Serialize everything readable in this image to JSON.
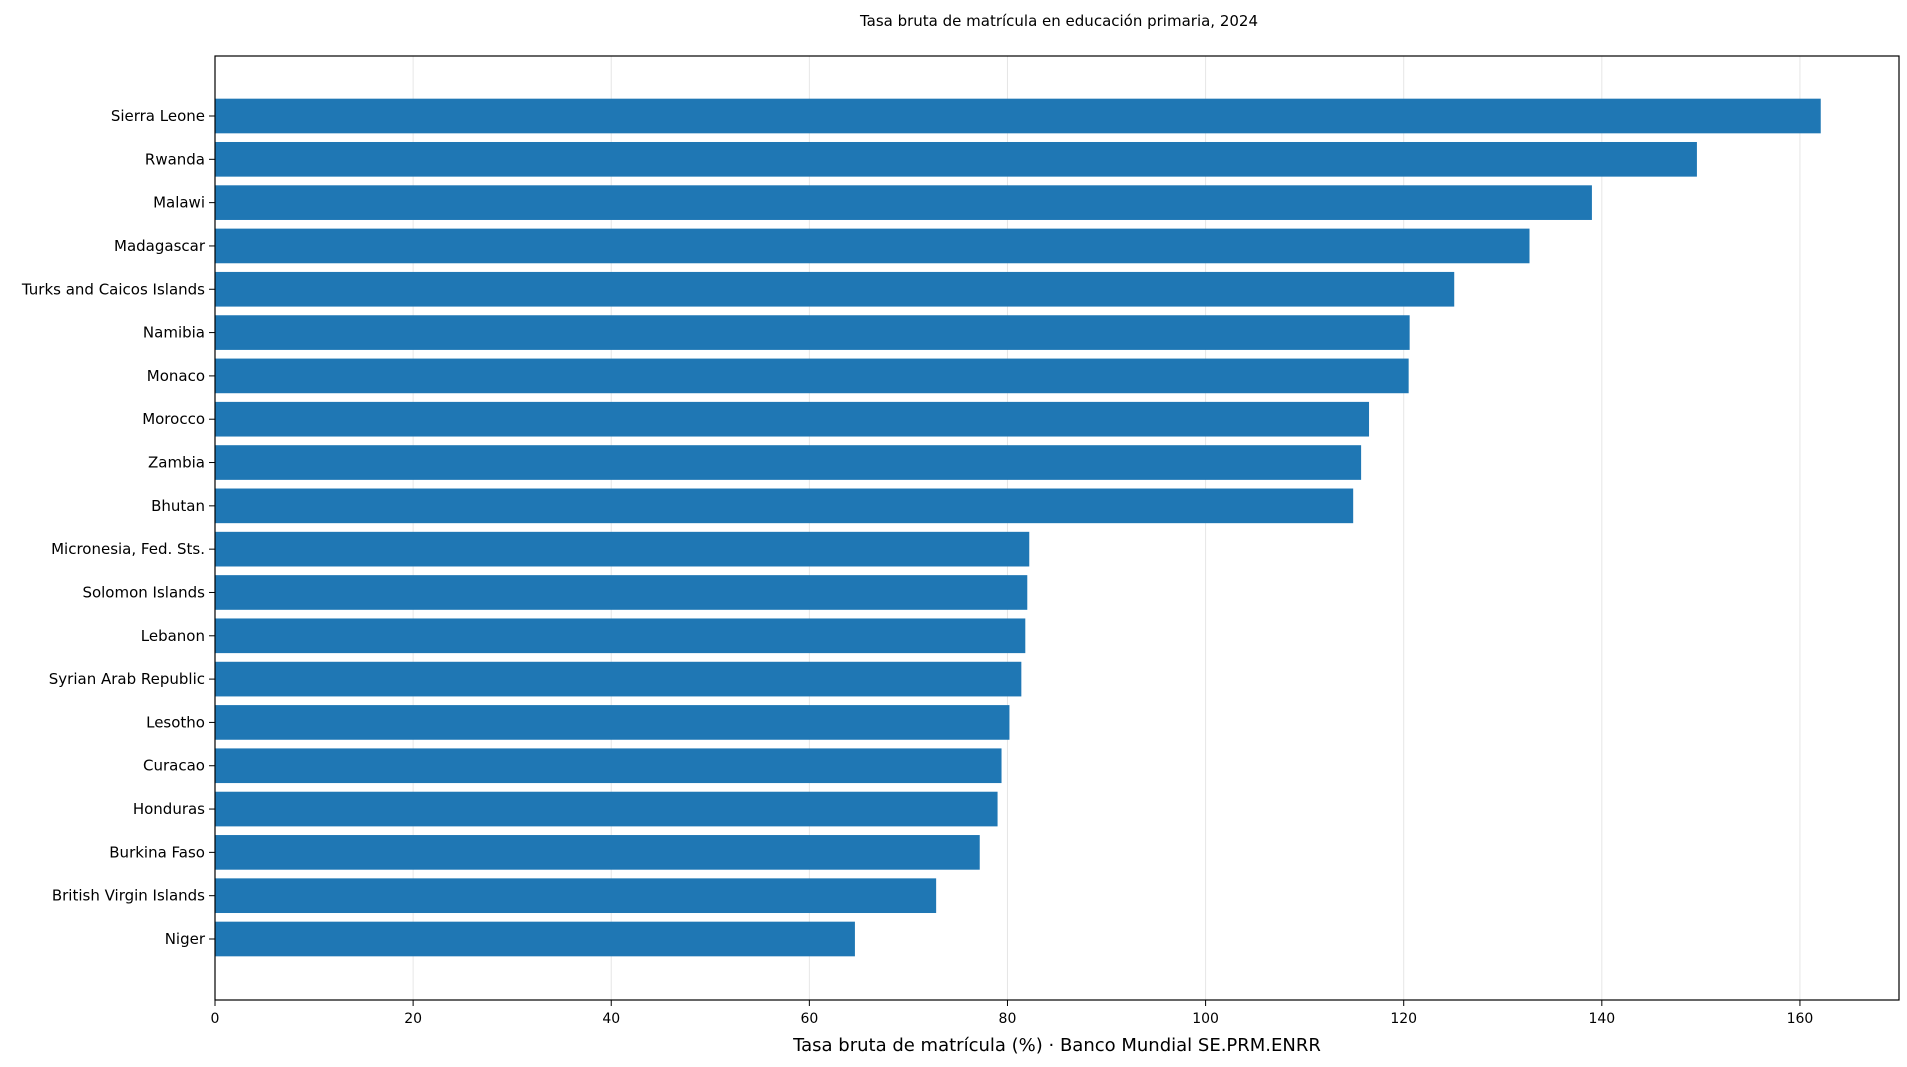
{
  "chart_data": {
    "type": "bar",
    "orientation": "horizontal",
    "title": "Tasa bruta de matrícula en educación primaria, 2024",
    "xlabel": "Tasa bruta de matrícula (%) · Banco Mundial SE.PRM.ENRR",
    "ylabel": "",
    "xlim": [
      0,
      170
    ],
    "xticks": [
      0,
      20,
      40,
      60,
      80,
      100,
      120,
      140,
      160
    ],
    "grid": "vertical",
    "bar_color": "#1f77b4",
    "categories": [
      "Sierra Leone",
      "Rwanda",
      "Malawi",
      "Madagascar",
      "Turks and Caicos Islands",
      "Namibia",
      "Monaco",
      "Morocco",
      "Zambia",
      "Bhutan",
      "Micronesia, Fed. Sts.",
      "Solomon Islands",
      "Lebanon",
      "Syrian Arab Republic",
      "Lesotho",
      "Curacao",
      "Honduras",
      "Burkina Faso",
      "British Virgin Islands",
      "Niger"
    ],
    "values": [
      162.1,
      149.6,
      139.0,
      132.7,
      125.1,
      120.6,
      120.5,
      116.5,
      115.7,
      114.9,
      82.2,
      82.0,
      81.8,
      81.4,
      80.2,
      79.4,
      79.0,
      77.2,
      72.8,
      64.6
    ]
  }
}
